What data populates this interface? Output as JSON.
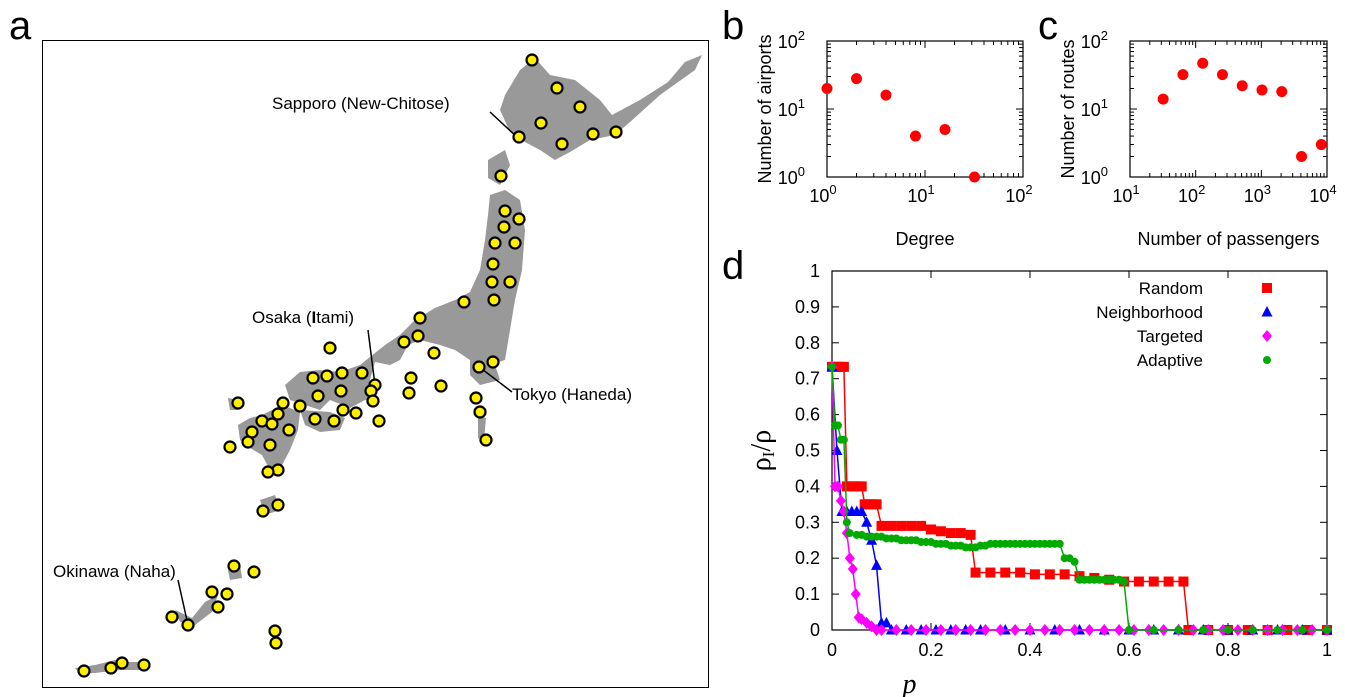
{
  "panel_letters": {
    "a": "a",
    "b": "b",
    "c": "c",
    "d": "d"
  },
  "map": {
    "land_color": "#999999",
    "airport_fill": "#ffee00",
    "airport_stroke": "#000000",
    "labels": {
      "sapporo": "Sapporo (New-Chitose)",
      "osaka_pre": "Osaka (",
      "osaka_bold": "I",
      "osaka_post": "tami)",
      "tokyo": "Tokyo (Haneda)",
      "okinawa": "Okinawa (Naha)"
    }
  },
  "chart_data": [
    {
      "panel": "b",
      "type": "scatter",
      "xlabel": "Degree",
      "ylabel": "Number of airports",
      "xscale": "log",
      "yscale": "log",
      "xlim": [
        1,
        100
      ],
      "ylim": [
        1,
        100
      ],
      "x_ticks": [
        {
          "base": "10",
          "exp": "0"
        },
        {
          "base": "10",
          "exp": "1"
        },
        {
          "base": "10",
          "exp": "2"
        }
      ],
      "y_ticks": [
        {
          "base": "10",
          "exp": "0"
        },
        {
          "base": "10",
          "exp": "1"
        },
        {
          "base": "10",
          "exp": "2"
        }
      ],
      "color": "#ff0000",
      "points": [
        [
          1,
          20
        ],
        [
          2,
          28
        ],
        [
          4,
          16
        ],
        [
          8,
          4
        ],
        [
          16,
          5
        ],
        [
          32,
          1
        ]
      ]
    },
    {
      "panel": "c",
      "type": "scatter",
      "xlabel": "Number of passengers",
      "ylabel": "Number of routes",
      "xscale": "log",
      "yscale": "log",
      "xlim": [
        10,
        10000
      ],
      "ylim": [
        1,
        100
      ],
      "x_ticks": [
        {
          "base": "10",
          "exp": "1"
        },
        {
          "base": "10",
          "exp": "2"
        },
        {
          "base": "10",
          "exp": "3"
        },
        {
          "base": "10",
          "exp": "4"
        }
      ],
      "y_ticks": [
        {
          "base": "10",
          "exp": "0"
        },
        {
          "base": "10",
          "exp": "1"
        },
        {
          "base": "10",
          "exp": "2"
        }
      ],
      "color": "#ff0000",
      "points": [
        [
          32,
          14
        ],
        [
          64,
          32
        ],
        [
          128,
          47
        ],
        [
          256,
          32
        ],
        [
          512,
          22
        ],
        [
          1024,
          19
        ],
        [
          2048,
          18
        ],
        [
          4096,
          2
        ],
        [
          8192,
          3
        ]
      ]
    },
    {
      "panel": "d",
      "type": "line",
      "xlabel": "p",
      "ylabel_main": "ρ",
      "ylabel_sub": "I",
      "ylabel_tail": "/ρ",
      "xlim": [
        0,
        1
      ],
      "ylim": [
        0,
        1
      ],
      "x_ticks": [
        "0",
        "0.2",
        "0.4",
        "0.6",
        "0.8",
        "1"
      ],
      "y_ticks": [
        "0",
        "0.1",
        "0.2",
        "0.3",
        "0.4",
        "0.5",
        "0.6",
        "0.7",
        "0.8",
        "0.9",
        "1"
      ],
      "legend_position": "top-right",
      "series": [
        {
          "name": "Random",
          "color": "#ff0000",
          "marker": "square",
          "points": [
            [
              0,
              0.733
            ],
            [
              0.006,
              0.733
            ],
            [
              0.012,
              0.733
            ],
            [
              0.018,
              0.733
            ],
            [
              0.024,
              0.733
            ],
            [
              0.03,
              0.4
            ],
            [
              0.036,
              0.4
            ],
            [
              0.042,
              0.4
            ],
            [
              0.048,
              0.4
            ],
            [
              0.054,
              0.4
            ],
            [
              0.06,
              0.4
            ],
            [
              0.066,
              0.35
            ],
            [
              0.072,
              0.35
            ],
            [
              0.078,
              0.35
            ],
            [
              0.084,
              0.35
            ],
            [
              0.09,
              0.35
            ],
            [
              0.1,
              0.29
            ],
            [
              0.12,
              0.29
            ],
            [
              0.14,
              0.29
            ],
            [
              0.16,
              0.29
            ],
            [
              0.18,
              0.29
            ],
            [
              0.2,
              0.28
            ],
            [
              0.22,
              0.275
            ],
            [
              0.24,
              0.27
            ],
            [
              0.26,
              0.27
            ],
            [
              0.28,
              0.265
            ],
            [
              0.29,
              0.16
            ],
            [
              0.32,
              0.16
            ],
            [
              0.35,
              0.16
            ],
            [
              0.38,
              0.16
            ],
            [
              0.41,
              0.155
            ],
            [
              0.44,
              0.155
            ],
            [
              0.47,
              0.155
            ],
            [
              0.5,
              0.15
            ],
            [
              0.53,
              0.145
            ],
            [
              0.56,
              0.14
            ],
            [
              0.59,
              0.135
            ],
            [
              0.62,
              0.135
            ],
            [
              0.65,
              0.135
            ],
            [
              0.68,
              0.135
            ],
            [
              0.71,
              0.135
            ],
            [
              0.72,
              0
            ],
            [
              0.76,
              0
            ],
            [
              0.8,
              0
            ],
            [
              0.84,
              0
            ],
            [
              0.88,
              0
            ],
            [
              0.92,
              0
            ],
            [
              0.96,
              0
            ],
            [
              1,
              0
            ]
          ]
        },
        {
          "name": "Neighborhood",
          "color": "#0000ff",
          "marker": "triangle",
          "points": [
            [
              0,
              0.733
            ],
            [
              0.01,
              0.5
            ],
            [
              0.02,
              0.33
            ],
            [
              0.03,
              0.33
            ],
            [
              0.04,
              0.33
            ],
            [
              0.05,
              0.33
            ],
            [
              0.06,
              0.33
            ],
            [
              0.07,
              0.3
            ],
            [
              0.08,
              0.25
            ],
            [
              0.09,
              0.18
            ],
            [
              0.1,
              0.02
            ],
            [
              0.11,
              0.02
            ],
            [
              0.12,
              0
            ],
            [
              0.15,
              0
            ],
            [
              0.18,
              0
            ],
            [
              0.21,
              0
            ],
            [
              0.24,
              0
            ],
            [
              0.27,
              0
            ],
            [
              0.3,
              0
            ],
            [
              0.35,
              0
            ],
            [
              0.4,
              0
            ],
            [
              0.45,
              0
            ],
            [
              0.5,
              0
            ],
            [
              0.55,
              0
            ],
            [
              0.6,
              0
            ],
            [
              0.65,
              0
            ],
            [
              0.7,
              0
            ],
            [
              0.75,
              0
            ],
            [
              0.8,
              0
            ],
            [
              0.85,
              0
            ],
            [
              0.9,
              0
            ],
            [
              0.95,
              0
            ],
            [
              1,
              0
            ]
          ]
        },
        {
          "name": "Targeted",
          "color": "#ff00ff",
          "marker": "diamond",
          "points": [
            [
              0,
              0.733
            ],
            [
              0.006,
              0.4
            ],
            [
              0.012,
              0.4
            ],
            [
              0.018,
              0.36
            ],
            [
              0.024,
              0.33
            ],
            [
              0.03,
              0.27
            ],
            [
              0.036,
              0.2
            ],
            [
              0.042,
              0.17
            ],
            [
              0.048,
              0.1
            ],
            [
              0.054,
              0.035
            ],
            [
              0.06,
              0.03
            ],
            [
              0.07,
              0.02
            ],
            [
              0.08,
              0.01
            ],
            [
              0.09,
              0
            ],
            [
              0.1,
              0
            ],
            [
              0.13,
              0
            ],
            [
              0.16,
              0
            ],
            [
              0.19,
              0
            ],
            [
              0.22,
              0
            ],
            [
              0.25,
              0
            ],
            [
              0.28,
              0
            ],
            [
              0.31,
              0
            ],
            [
              0.34,
              0
            ],
            [
              0.37,
              0
            ],
            [
              0.4,
              0
            ],
            [
              0.43,
              0
            ],
            [
              0.46,
              0
            ],
            [
              0.49,
              0
            ],
            [
              0.52,
              0
            ],
            [
              0.55,
              0
            ],
            [
              0.58,
              0
            ],
            [
              0.61,
              0
            ],
            [
              0.64,
              0
            ],
            [
              0.67,
              0
            ],
            [
              0.7,
              0
            ],
            [
              0.73,
              0
            ],
            [
              0.76,
              0
            ],
            [
              0.79,
              0
            ],
            [
              0.82,
              0
            ],
            [
              0.85,
              0
            ],
            [
              0.88,
              0
            ],
            [
              0.91,
              0
            ],
            [
              0.94,
              0
            ],
            [
              0.97,
              0
            ],
            [
              1,
              0
            ]
          ]
        },
        {
          "name": "Adaptive",
          "color": "#00aa00",
          "marker": "circle",
          "points": [
            [
              0,
              0.733
            ],
            [
              0.006,
              0.57
            ],
            [
              0.012,
              0.57
            ],
            [
              0.018,
              0.53
            ],
            [
              0.024,
              0.53
            ],
            [
              0.03,
              0.3
            ],
            [
              0.036,
              0.27
            ],
            [
              0.05,
              0.265
            ],
            [
              0.06,
              0.265
            ],
            [
              0.07,
              0.26
            ],
            [
              0.08,
              0.26
            ],
            [
              0.09,
              0.26
            ],
            [
              0.1,
              0.26
            ],
            [
              0.11,
              0.255
            ],
            [
              0.12,
              0.255
            ],
            [
              0.13,
              0.255
            ],
            [
              0.14,
              0.25
            ],
            [
              0.15,
              0.25
            ],
            [
              0.16,
              0.25
            ],
            [
              0.17,
              0.25
            ],
            [
              0.18,
              0.245
            ],
            [
              0.19,
              0.245
            ],
            [
              0.2,
              0.245
            ],
            [
              0.21,
              0.24
            ],
            [
              0.22,
              0.24
            ],
            [
              0.23,
              0.24
            ],
            [
              0.24,
              0.235
            ],
            [
              0.25,
              0.235
            ],
            [
              0.26,
              0.235
            ],
            [
              0.27,
              0.23
            ],
            [
              0.28,
              0.23
            ],
            [
              0.29,
              0.23
            ],
            [
              0.3,
              0.235
            ],
            [
              0.31,
              0.235
            ],
            [
              0.32,
              0.24
            ],
            [
              0.33,
              0.24
            ],
            [
              0.34,
              0.24
            ],
            [
              0.35,
              0.24
            ],
            [
              0.36,
              0.24
            ],
            [
              0.37,
              0.24
            ],
            [
              0.38,
              0.24
            ],
            [
              0.39,
              0.24
            ],
            [
              0.4,
              0.24
            ],
            [
              0.41,
              0.24
            ],
            [
              0.42,
              0.24
            ],
            [
              0.43,
              0.24
            ],
            [
              0.44,
              0.24
            ],
            [
              0.45,
              0.24
            ],
            [
              0.46,
              0.24
            ],
            [
              0.47,
              0.2
            ],
            [
              0.48,
              0.2
            ],
            [
              0.49,
              0.19
            ],
            [
              0.5,
              0.14
            ],
            [
              0.51,
              0.14
            ],
            [
              0.52,
              0.14
            ],
            [
              0.53,
              0.14
            ],
            [
              0.54,
              0.14
            ],
            [
              0.55,
              0.14
            ],
            [
              0.56,
              0.14
            ],
            [
              0.57,
              0.14
            ],
            [
              0.58,
              0.14
            ],
            [
              0.59,
              0.135
            ],
            [
              0.6,
              0
            ],
            [
              0.65,
              0
            ],
            [
              0.7,
              0
            ],
            [
              0.75,
              0
            ],
            [
              0.8,
              0
            ],
            [
              0.85,
              0
            ],
            [
              0.9,
              0
            ],
            [
              0.95,
              0
            ],
            [
              1,
              0
            ]
          ]
        }
      ]
    }
  ]
}
